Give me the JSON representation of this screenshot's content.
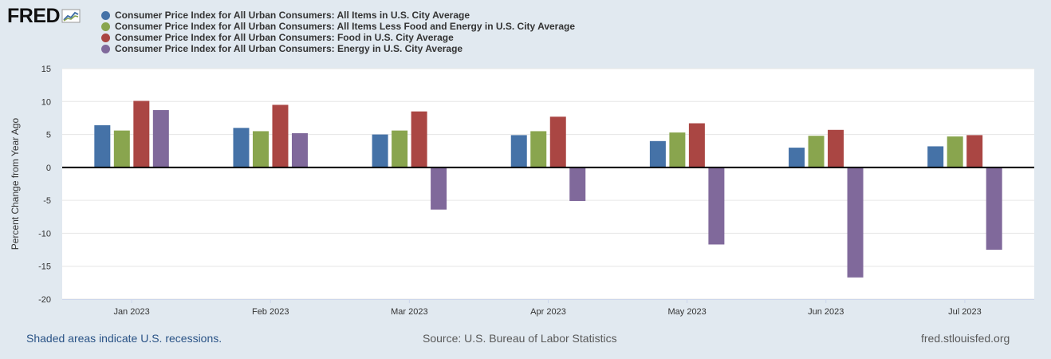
{
  "logo": {
    "text": "FRED",
    "icon": "fred-graph-icon"
  },
  "footer": {
    "recession_note": "Shaded areas indicate U.S. recessions.",
    "source": "Source: U.S. Bureau of Labor Statistics",
    "url": "fred.stlouisfed.org"
  },
  "chart_data": {
    "type": "bar",
    "title": "",
    "xlabel": "",
    "ylabel": "Percent Change from Year Ago",
    "ylim": [
      -20,
      15
    ],
    "yticks": [
      15,
      10,
      5,
      0,
      -5,
      -10,
      -15,
      -20
    ],
    "categories": [
      "Jan 2023",
      "Feb 2023",
      "Mar 2023",
      "Apr 2023",
      "May 2023",
      "Jun 2023",
      "Jul 2023"
    ],
    "series": [
      {
        "name": "Consumer Price Index for All Urban Consumers: All Items in U.S. City Average",
        "color": "#4572a7",
        "values": [
          6.4,
          6.0,
          5.0,
          4.9,
          4.0,
          3.0,
          3.2
        ]
      },
      {
        "name": "Consumer Price Index for All Urban Consumers: All Items Less Food and Energy in U.S. City Average",
        "color": "#89a54e",
        "values": [
          5.6,
          5.5,
          5.6,
          5.5,
          5.3,
          4.8,
          4.7
        ]
      },
      {
        "name": "Consumer Price Index for All Urban Consumers: Food in U.S. City Average",
        "color": "#aa4643",
        "values": [
          10.1,
          9.5,
          8.5,
          7.7,
          6.7,
          5.7,
          4.9
        ]
      },
      {
        "name": "Consumer Price Index for All Urban Consumers: Energy in U.S. City Average",
        "color": "#80699b",
        "values": [
          8.7,
          5.2,
          -6.4,
          -5.1,
          -11.7,
          -16.7,
          -12.5
        ]
      }
    ],
    "legend_position": "top",
    "grid": true
  }
}
